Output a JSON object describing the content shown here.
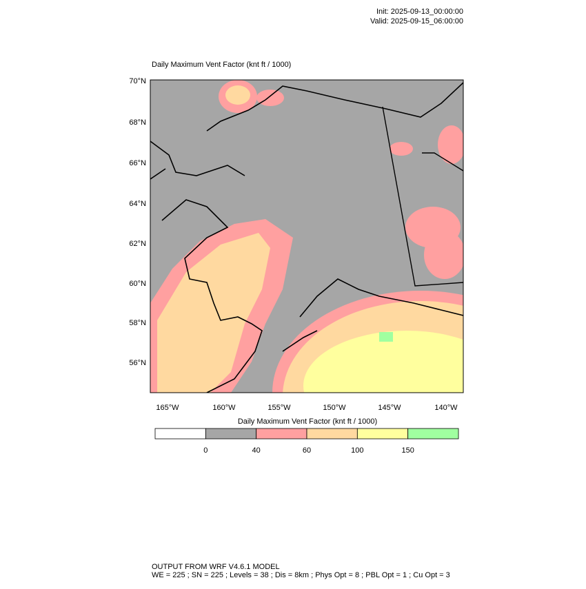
{
  "header": {
    "init": "Init: 2025-09-13_00:00:00",
    "valid": "Valid: 2025-09-15_06:00:00"
  },
  "title": "Daily Maximum Vent Factor   (knt ft / 1000)",
  "map": {
    "lat_labels": [
      "70°N",
      "68°N",
      "66°N",
      "64°N",
      "62°N",
      "60°N",
      "58°N",
      "56°N"
    ],
    "lon_labels": [
      "165°W",
      "160°W",
      "155°W",
      "150°W",
      "145°W",
      "140°W"
    ]
  },
  "colorbar": {
    "title": "Daily Maximum Vent Factor  (knt ft / 1000)",
    "ticks": [
      0,
      40,
      60,
      100,
      150
    ],
    "colors": [
      "#ffffff",
      "#a6a6a6",
      "#ffa0a0",
      "#ffd9a0",
      "#ffff9e",
      "#a0ffa0"
    ]
  },
  "footer": {
    "line1": "OUTPUT FROM WRF V4.6.1 MODEL",
    "line2": "WE = 225 ; SN = 225 ; Levels = 38 ; Dis = 8km ; Phys Opt = 8 ; PBL Opt = 1 ; Cu Opt = 3"
  }
}
